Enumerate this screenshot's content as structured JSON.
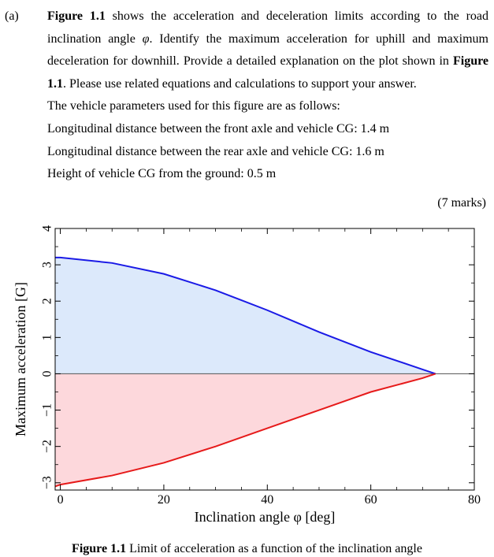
{
  "question": {
    "part": "(a)",
    "fig_ref": "Figure 1.1",
    "intro_pre_phi": " shows the acceleration and deceleration limits according to the road inclination angle ",
    "phi": "φ",
    "intro_post_phi": ". Identify the maximum acceleration for uphill and maximum deceleration for downhill. Provide a detailed explanation on the plot shown in ",
    "fig_ref2": "Figure 1.1",
    "intro_end": ". Please use related equations and calculations to support your answer.",
    "params_heading": "The vehicle parameters used for this figure are as follows:",
    "params": [
      "Longitudinal distance between the front axle and vehicle CG: 1.4 m",
      "Longitudinal distance between the rear axle and vehicle CG: 1.6 m",
      "Height of vehicle CG from the ground: 0.5 m"
    ],
    "marks": "(7 marks)"
  },
  "chart_data": {
    "type": "area",
    "xlabel": "Inclination angle φ [deg]",
    "ylabel": "Maximum acceleration [G]",
    "xlim": [
      -1,
      80
    ],
    "ylim": [
      -3.2,
      4
    ],
    "xticks": [
      0,
      20,
      40,
      60,
      80
    ],
    "yticks": [
      -3,
      -2,
      -1,
      0,
      1,
      2,
      3,
      4
    ],
    "grid": false,
    "series": [
      {
        "color": "#1a1ae6",
        "fill": "#dce9fb",
        "points": [
          [
            -1,
            3.2
          ],
          [
            0,
            3.2
          ],
          [
            10,
            3.05
          ],
          [
            20,
            2.75
          ],
          [
            30,
            2.3
          ],
          [
            40,
            1.75
          ],
          [
            50,
            1.15
          ],
          [
            60,
            0.6
          ],
          [
            70,
            0.12
          ],
          [
            72.5,
            0.0
          ]
        ]
      },
      {
        "color": "#e61a1a",
        "fill": "#fdd8dc",
        "points": [
          [
            -1,
            -3.1
          ],
          [
            0,
            -3.05
          ],
          [
            10,
            -2.8
          ],
          [
            20,
            -2.45
          ],
          [
            30,
            -2.0
          ],
          [
            40,
            -1.5
          ],
          [
            50,
            -1.0
          ],
          [
            60,
            -0.5
          ],
          [
            70,
            -0.12
          ],
          [
            72.5,
            0.0
          ]
        ]
      }
    ],
    "caption_label": "Figure 1.1",
    "caption_text": " Limit of acceleration as a function of the inclination angle"
  }
}
